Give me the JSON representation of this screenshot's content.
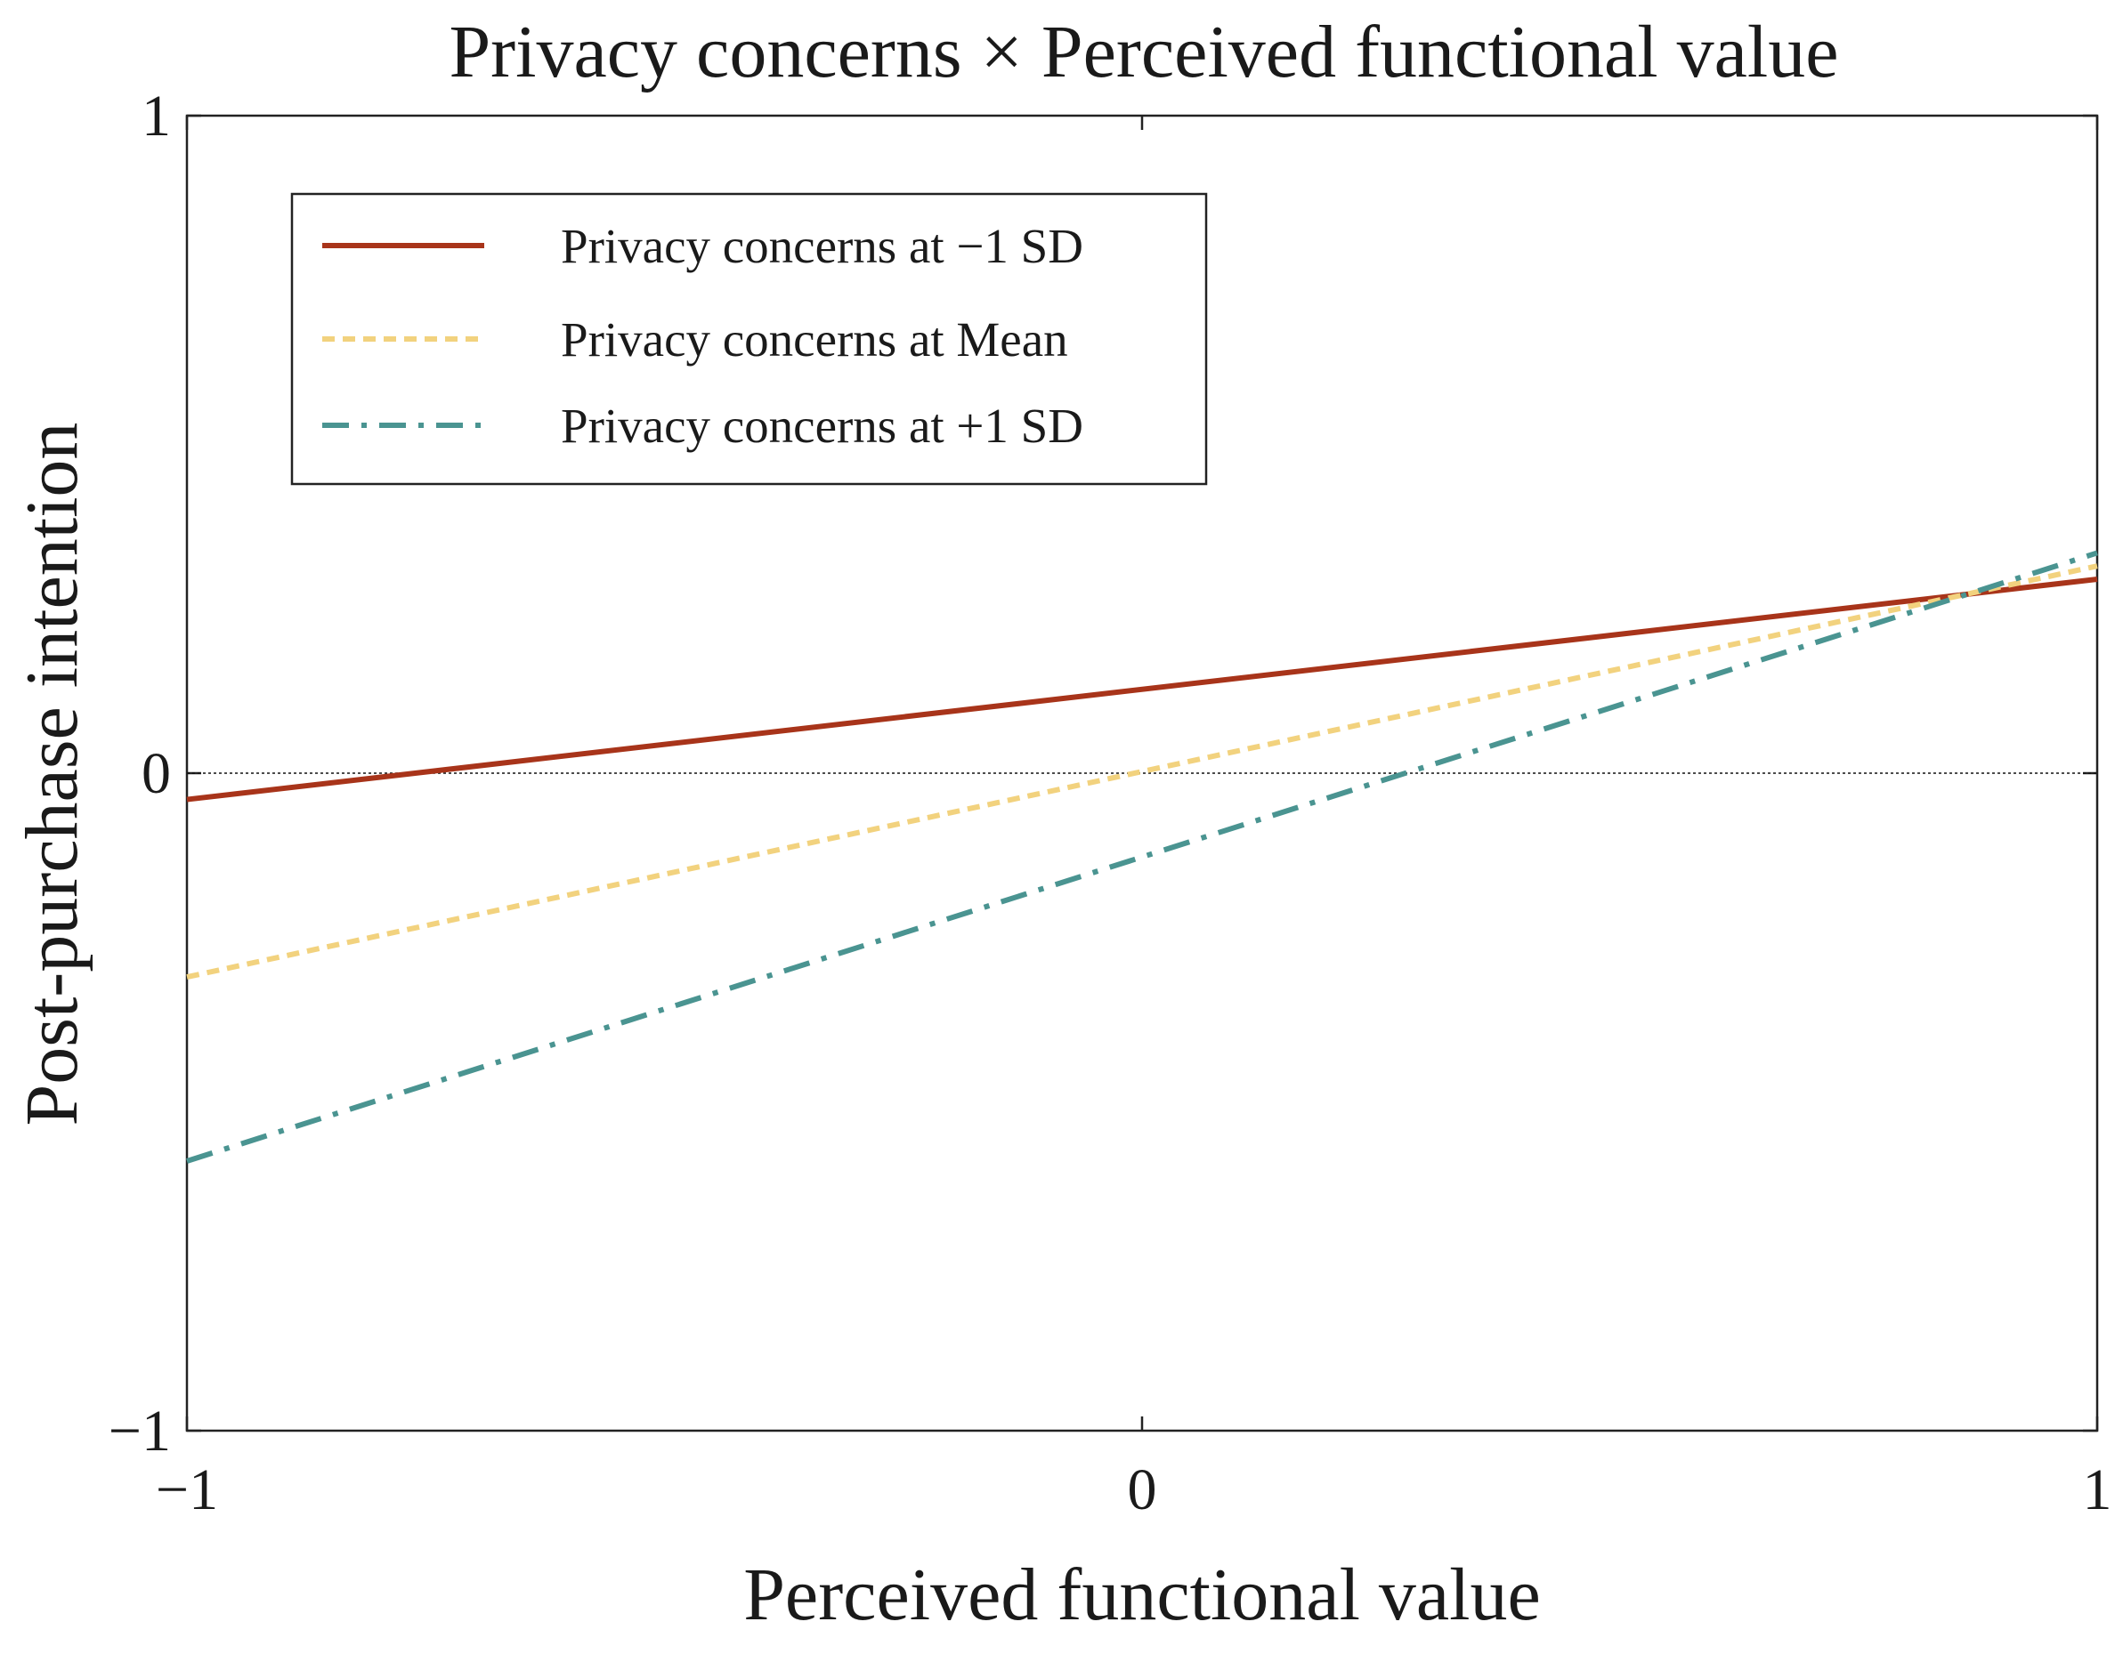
{
  "chart_data": {
    "type": "line",
    "title": "Privacy concerns × Perceived functional value",
    "xlabel": "Perceived functional value",
    "ylabel": "Post-purchase intention",
    "xlim": [
      -1,
      1
    ],
    "ylim": [
      -1,
      1
    ],
    "x_ticks": [
      -1,
      0,
      1
    ],
    "x_tick_labels": [
      "−1",
      "0",
      "1"
    ],
    "y_ticks": [
      -1,
      0,
      1
    ],
    "y_tick_labels": [
      "−1",
      "0",
      "1"
    ],
    "reference_line_y": 0,
    "grid": false,
    "legend_position": "top-left",
    "x": [
      -1,
      1
    ],
    "series": [
      {
        "name": "Privacy concerns at −1 SD",
        "values": [
          -0.04,
          0.295
        ],
        "color": "#a8341a",
        "style": "solid"
      },
      {
        "name": "Privacy concerns at Mean",
        "values": [
          -0.31,
          0.315
        ],
        "color": "#f2d27e",
        "style": "dotted"
      },
      {
        "name": "Privacy concerns at +1 SD",
        "values": [
          -0.59,
          0.335
        ],
        "color": "#4a9491",
        "style": "dashdot"
      }
    ]
  }
}
